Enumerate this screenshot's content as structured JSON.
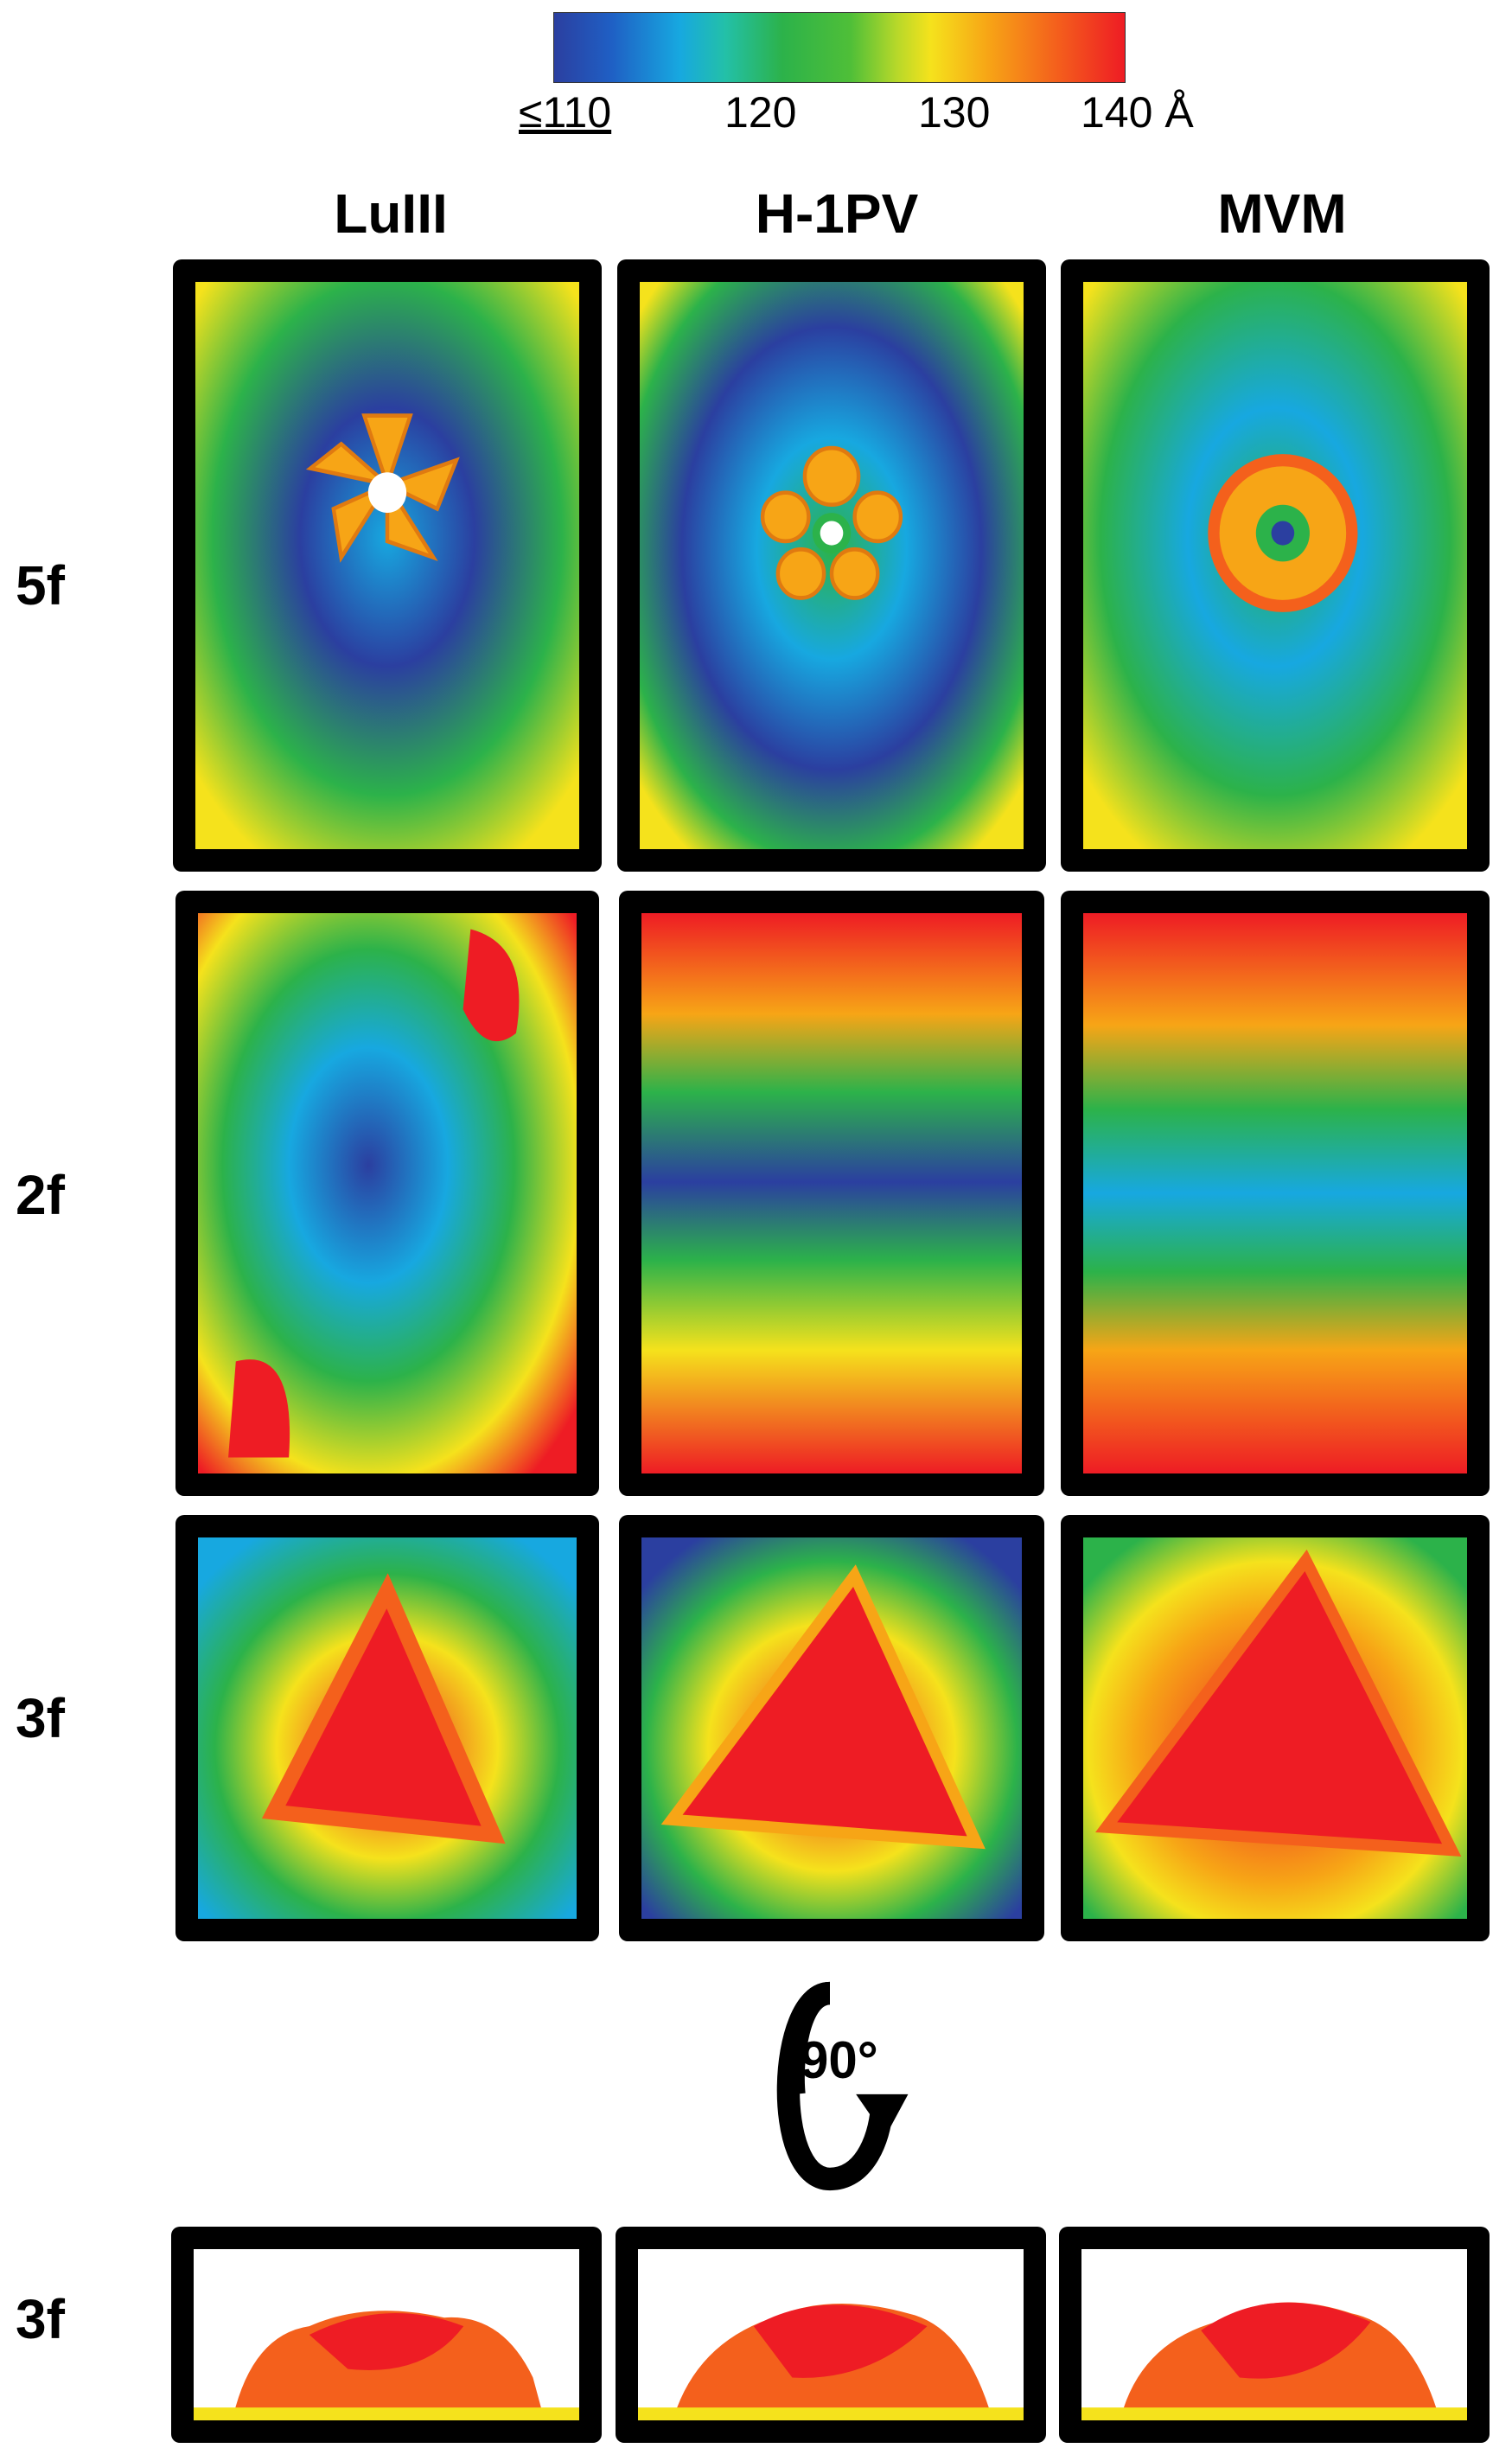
{
  "colorbar": {
    "ticks": [
      "≤110",
      "120",
      "130",
      "140 Å"
    ],
    "colors": [
      "#2b3fa0",
      "#17a8e0",
      "#2cb24a",
      "#f5e21c",
      "#f7a516",
      "#ee1c24"
    ]
  },
  "columns": [
    "LuIII",
    "H-1PV",
    "MVM"
  ],
  "rows": [
    "5f",
    "2f",
    "3f",
    "3f"
  ],
  "rotation_label": "90°",
  "icons": {
    "rotation": "rotate-arrow-icon"
  }
}
